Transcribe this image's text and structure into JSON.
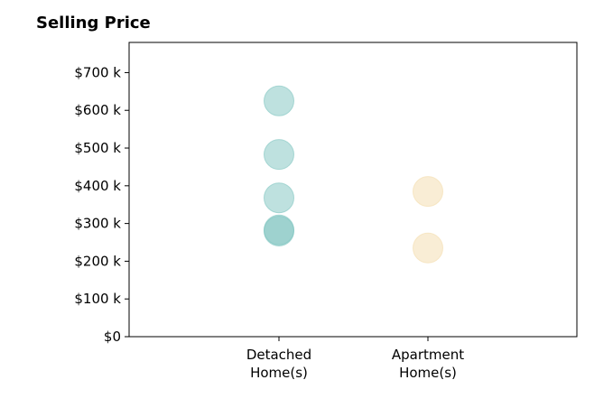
{
  "chart_data": {
    "type": "scatter",
    "title": "Selling Price",
    "xlabel": "",
    "ylabel": "",
    "categories": [
      "Detached\nHome(s)",
      "Apartment\nHome(s)"
    ],
    "series": [
      {
        "category": "Detached\nHome(s)",
        "values": [
          625000,
          483000,
          368000,
          283000,
          280000
        ],
        "color": "#7ec4bf"
      },
      {
        "category": "Apartment\nHome(s)",
        "values": [
          385000,
          235000
        ],
        "color": "#f3dcac"
      }
    ],
    "ylim": [
      0,
      780000
    ],
    "yticks": [
      0,
      100000,
      200000,
      300000,
      400000,
      500000,
      600000,
      700000
    ],
    "ytick_labels": [
      "$0",
      "$100 k",
      "$200 k",
      "$300 k",
      "$400 k",
      "$500 k",
      "$600 k",
      "$700 k"
    ],
    "grid": false,
    "legend": "none"
  }
}
